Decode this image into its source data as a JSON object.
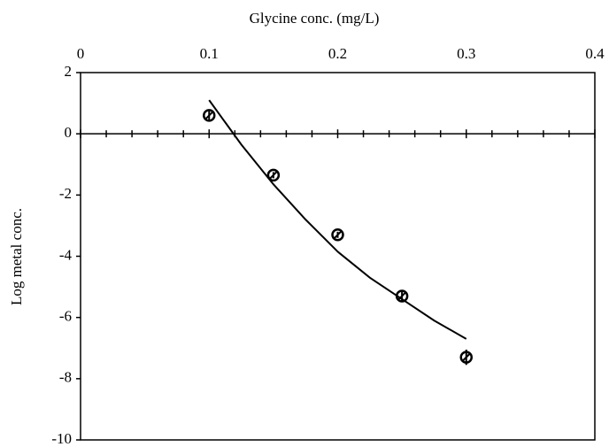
{
  "chart_data": {
    "type": "scatter",
    "x_label": "Glycine conc. (mg/L)",
    "y_label": "Log metal conc.",
    "xlim": [
      0,
      0.4
    ],
    "xticks": [
      0,
      0.1,
      0.2,
      0.3,
      0.4
    ],
    "ylim": [
      -10,
      2
    ],
    "yticks": [
      -10,
      -8,
      -6,
      -4,
      -2,
      0,
      2
    ],
    "series": [
      {
        "x": [
          0.1,
          0.15,
          0.2,
          0.25,
          0.3
        ],
        "values": [
          0.6,
          -1.35,
          -3.3,
          -5.3,
          -7.3
        ],
        "errors": [
          0.15,
          0.1,
          0.1,
          0.15,
          0.25
        ],
        "color": "#000000"
      }
    ],
    "trendline": {
      "x": [
        0.1,
        0.125,
        0.15,
        0.175,
        0.2,
        0.225,
        0.25,
        0.275,
        0.3
      ],
      "values": [
        1.1,
        -0.35,
        -1.65,
        -2.8,
        -3.85,
        -4.7,
        -5.4,
        -6.1,
        -6.7
      ],
      "color": "#000000"
    }
  }
}
